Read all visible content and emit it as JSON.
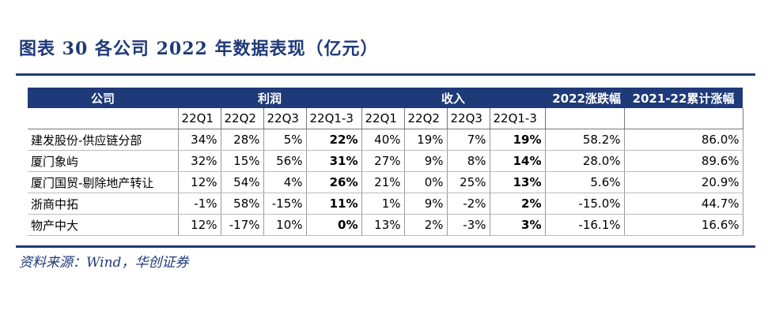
{
  "title": "图表 30   各公司 2022 年数据表现（亿元）",
  "source": "资料来源：Wind，华创证券",
  "table": {
    "header1": {
      "company": "公司",
      "profit": "利润",
      "revenue": "收入",
      "change2022": "2022涨跌幅",
      "cumulative": "2021-22累计涨幅"
    },
    "quarters": [
      "22Q1",
      "22Q2",
      "22Q3",
      "22Q1-3"
    ],
    "rows": [
      {
        "name": "建发股份-供应链分部",
        "profit": [
          "34%",
          "28%",
          "5%",
          "22%"
        ],
        "revenue": [
          "40%",
          "19%",
          "7%",
          "19%"
        ],
        "change2022": "58.2%",
        "cumulative": "86.0%"
      },
      {
        "name": "厦门象屿",
        "profit": [
          "32%",
          "15%",
          "56%",
          "31%"
        ],
        "revenue": [
          "27%",
          "9%",
          "8%",
          "14%"
        ],
        "change2022": "28.0%",
        "cumulative": "89.6%"
      },
      {
        "name": "厦门国贸-剔除地产转让",
        "profit": [
          "12%",
          "54%",
          "4%",
          "26%"
        ],
        "revenue": [
          "21%",
          "0%",
          "25%",
          "13%"
        ],
        "change2022": "5.6%",
        "cumulative": "20.9%"
      },
      {
        "name": "浙商中拓",
        "profit": [
          "-1%",
          "58%",
          "-15%",
          "11%"
        ],
        "revenue": [
          "1%",
          "9%",
          "-2%",
          "2%"
        ],
        "change2022": "-15.0%",
        "cumulative": "44.7%"
      },
      {
        "name": "物产中大",
        "profit": [
          "12%",
          "-17%",
          "10%",
          "0%"
        ],
        "revenue": [
          "13%",
          "2%",
          "-3%",
          "3%"
        ],
        "change2022": "-16.1%",
        "cumulative": "16.6%"
      }
    ]
  }
}
